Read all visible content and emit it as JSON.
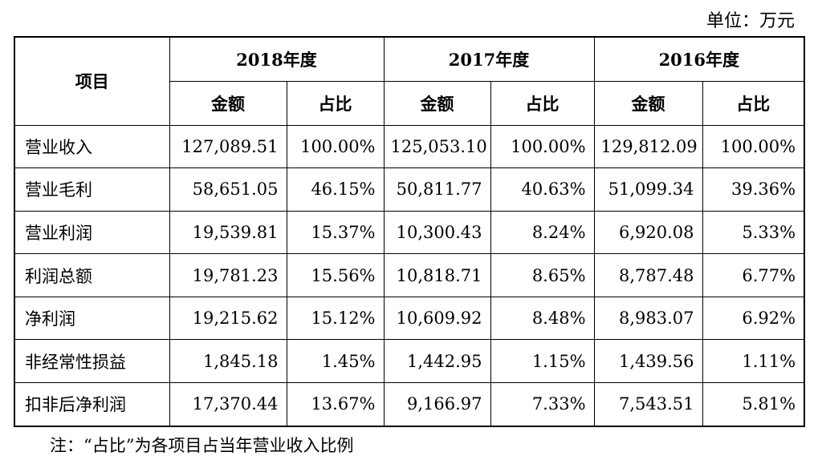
{
  "unit_label": "单位：万元",
  "header": {
    "item": "项目",
    "years": [
      "2018年度",
      "2017年度",
      "2016年度"
    ],
    "amount": "金额",
    "ratio": "占比"
  },
  "rows": [
    {
      "label": "营业收入",
      "cells": [
        "127,089.51",
        "100.00%",
        "125,053.10",
        "100.00%",
        "129,812.09",
        "100.00%"
      ]
    },
    {
      "label": "营业毛利",
      "cells": [
        "58,651.05",
        "46.15%",
        "50,811.77",
        "40.63%",
        "51,099.34",
        "39.36%"
      ]
    },
    {
      "label": "营业利润",
      "cells": [
        "19,539.81",
        "15.37%",
        "10,300.43",
        "8.24%",
        "6,920.08",
        "5.33%"
      ]
    },
    {
      "label": "利润总额",
      "cells": [
        "19,781.23",
        "15.56%",
        "10,818.71",
        "8.65%",
        "8,787.48",
        "6.77%"
      ]
    },
    {
      "label": "净利润",
      "cells": [
        "19,215.62",
        "15.12%",
        "10,609.92",
        "8.48%",
        "8,983.07",
        "6.92%"
      ]
    },
    {
      "label": "非经常性损益",
      "cells": [
        "1,845.18",
        "1.45%",
        "1,442.95",
        "1.15%",
        "1,439.56",
        "1.11%"
      ]
    },
    {
      "label": "扣非后净利润",
      "cells": [
        "17,370.44",
        "13.67%",
        "9,166.97",
        "7.33%",
        "7,543.51",
        "5.81%"
      ]
    }
  ],
  "note": "注：“占比”为各项目占当年营业收入比例"
}
